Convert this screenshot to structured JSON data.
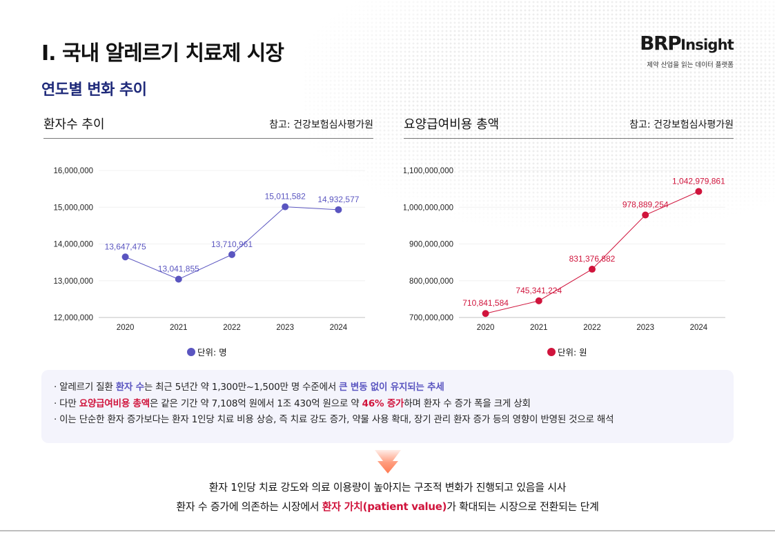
{
  "header": {
    "title": "I. 국내 알레르기 치료제 시장",
    "subtitle": "연도별 변화 추이"
  },
  "logo": {
    "brand_bold": "BRP",
    "brand_rest": "Insight",
    "tagline": "제약 산업을 읽는 데이터 플랫폼"
  },
  "colors": {
    "series_blue": "#5a55c0",
    "series_red": "#d0143c",
    "subtitle_navy": "#1f2a7a"
  },
  "chart_data": [
    {
      "type": "line",
      "title": "환자수 추이",
      "source": "참고: 건강보험심사평가원",
      "categories": [
        "2020",
        "2021",
        "2022",
        "2023",
        "2024"
      ],
      "series": [
        {
          "name": "환자수",
          "values": [
            13647475,
            13041855,
            13710961,
            15011582,
            14932577
          ]
        }
      ],
      "data_labels": [
        "13,647,475",
        "13,041,855",
        "13,710,961",
        "15,011,582",
        "14,932,577"
      ],
      "ylim": [
        12000000,
        16000000
      ],
      "yticks": [
        12000000,
        13000000,
        14000000,
        15000000,
        16000000
      ],
      "ytick_labels": [
        "12,000,000",
        "13,000,000",
        "14,000,000",
        "15,000,000",
        "16,000,000"
      ],
      "grid": true,
      "legend": {
        "label": "단위: 명",
        "placement": "bottom-center"
      },
      "color": "#5a55c0"
    },
    {
      "type": "line",
      "title": "요양급여비용 총액",
      "source": "참고: 건강보험심사평가원",
      "categories": [
        "2020",
        "2021",
        "2022",
        "2023",
        "2024"
      ],
      "series": [
        {
          "name": "요양급여비용 총액",
          "values": [
            710841584,
            745341224,
            831376882,
            978889254,
            1042979861
          ]
        }
      ],
      "data_labels": [
        "710,841,584",
        "745,341,224",
        "831,376,882",
        "978,889,254",
        "1,042,979,861"
      ],
      "ylim": [
        700000000,
        1100000000
      ],
      "yticks": [
        700000000,
        800000000,
        900000000,
        1000000000,
        1100000000
      ],
      "ytick_labels": [
        "700,000,000",
        "800,000,000",
        "900,000,000",
        "1,000,000,000",
        "1,100,000,000"
      ],
      "grid": true,
      "legend": {
        "label": "단위: 원",
        "placement": "bottom-center"
      },
      "color": "#d0143c"
    }
  ],
  "summary": {
    "bullets": [
      {
        "parts": [
          {
            "text": "· 알레르기 질환 ",
            "style": ""
          },
          {
            "text": "환자 수",
            "style": "blue"
          },
          {
            "text": "는 최근 5년간 약 1,300만~1,500만 명 수준에서 ",
            "style": ""
          },
          {
            "text": "큰 변동 없이 유지되는 추세",
            "style": "blue"
          }
        ]
      },
      {
        "parts": [
          {
            "text": "· 다만 ",
            "style": ""
          },
          {
            "text": "요양급여비용 총액",
            "style": "red"
          },
          {
            "text": "은 같은 기간 약 7,108억 원에서 1조 430억 원으로 약 ",
            "style": ""
          },
          {
            "text": "46% 증가",
            "style": "red"
          },
          {
            "text": "하며 환자 수 증가 폭을 크게 상회",
            "style": ""
          }
        ]
      },
      {
        "parts": [
          {
            "text": "· 이는 단순한 환자 증가보다는 환자 1인당 치료 비용 상승, 즉 치료 강도 증가, 약물 사용 확대, 장기 관리 환자 증가 등의 영향이 반영된 것으로 해석",
            "style": ""
          }
        ]
      }
    ]
  },
  "conclusion": {
    "line1": "환자 1인당 치료 강도와 의료 이용량이 높아지는 구조적 변화가 진행되고 있음을 시사",
    "line2_pre": "환자 수 증가에 의존하는 시장에서 ",
    "line2_highlight": "환자 가치(patient value)",
    "line2_post": "가 확대되는 시장으로 전환되는 단계"
  }
}
